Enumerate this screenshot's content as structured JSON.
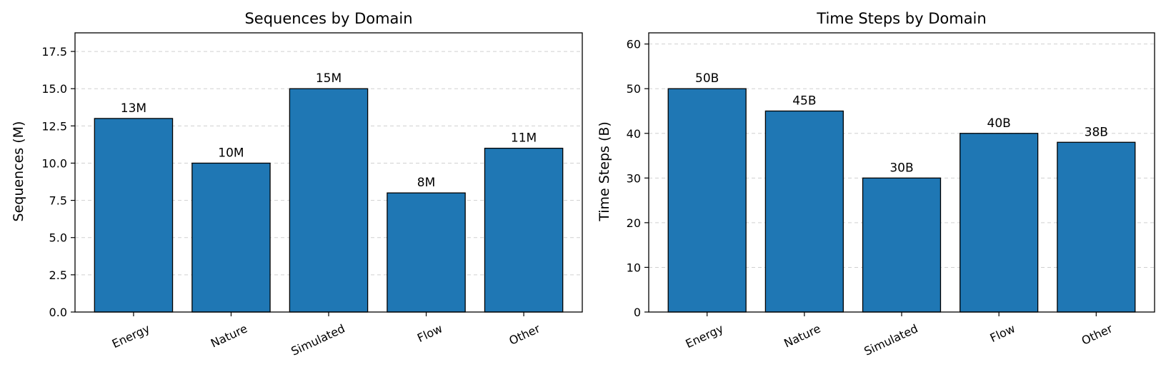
{
  "chart_data": [
    {
      "type": "bar",
      "title": "Sequences by Domain",
      "xlabel": "",
      "ylabel": "Sequences (M)",
      "categories": [
        "Energy",
        "Nature",
        "Simulated",
        "Flow",
        "Other"
      ],
      "values": [
        13,
        10,
        15,
        8,
        11
      ],
      "value_labels": [
        "13M",
        "10M",
        "15M",
        "8M",
        "11M"
      ],
      "ylim": [
        0,
        18.75
      ],
      "yticks": [
        0,
        2.5,
        5,
        7.5,
        10,
        12.5,
        15,
        17.5
      ],
      "ytick_labels": [
        "0.0",
        "2.5",
        "5.0",
        "7.5",
        "10.0",
        "12.5",
        "15.0",
        "17.5"
      ],
      "grid": "y-dashed",
      "bar_color": "#1f77b4",
      "edge_color": "#000000"
    },
    {
      "type": "bar",
      "title": "Time Steps by Domain",
      "xlabel": "",
      "ylabel": "Time Steps (B)",
      "categories": [
        "Energy",
        "Nature",
        "Simulated",
        "Flow",
        "Other"
      ],
      "values": [
        50,
        45,
        30,
        40,
        38
      ],
      "value_labels": [
        "50B",
        "45B",
        "30B",
        "40B",
        "38B"
      ],
      "ylim": [
        0,
        62.5
      ],
      "yticks": [
        0,
        10,
        20,
        30,
        40,
        50,
        60
      ],
      "ytick_labels": [
        "0",
        "10",
        "20",
        "30",
        "40",
        "50",
        "60"
      ],
      "grid": "y-dashed",
      "bar_color": "#1f77b4",
      "edge_color": "#000000"
    }
  ]
}
